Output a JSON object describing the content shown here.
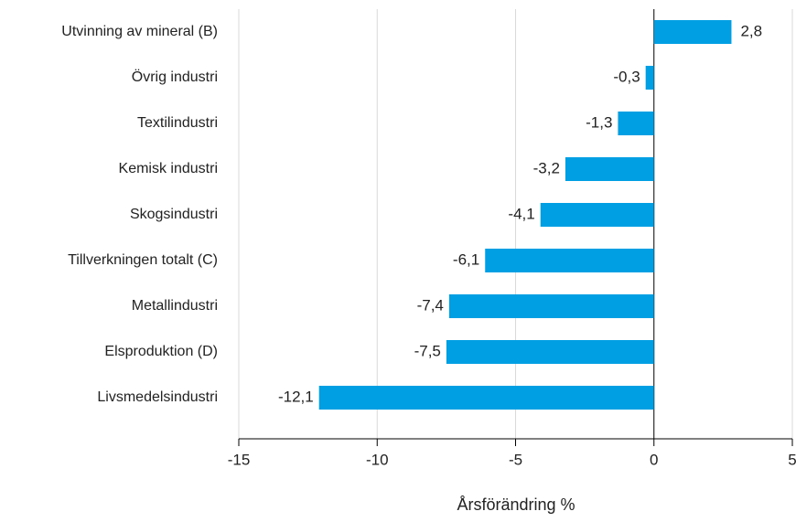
{
  "chart_data": {
    "type": "bar",
    "orientation": "horizontal",
    "categories": [
      "Utvinning av mineral (B)",
      "Övrig industri",
      "Textilindustri",
      "Kemisk industri",
      "Skogsindustri",
      "Tillverkningen totalt (C)",
      "Metallindustri",
      "Elsproduktion (D)",
      "Livsmedelsindustri"
    ],
    "values": [
      2.8,
      -0.3,
      -1.3,
      -3.2,
      -4.1,
      -6.1,
      -7.4,
      -7.5,
      -12.1
    ],
    "value_labels": [
      "2,8",
      "-0,3",
      "-1,3",
      "-3,2",
      "-4,1",
      "-6,1",
      "-7,4",
      "-7,5",
      "-12,1"
    ],
    "color": "#009fe3",
    "x_label": "Årsförändring %",
    "xlim": [
      -15,
      5
    ],
    "xticks": [
      -15,
      -10,
      -5,
      0,
      5
    ],
    "grid": true
  }
}
